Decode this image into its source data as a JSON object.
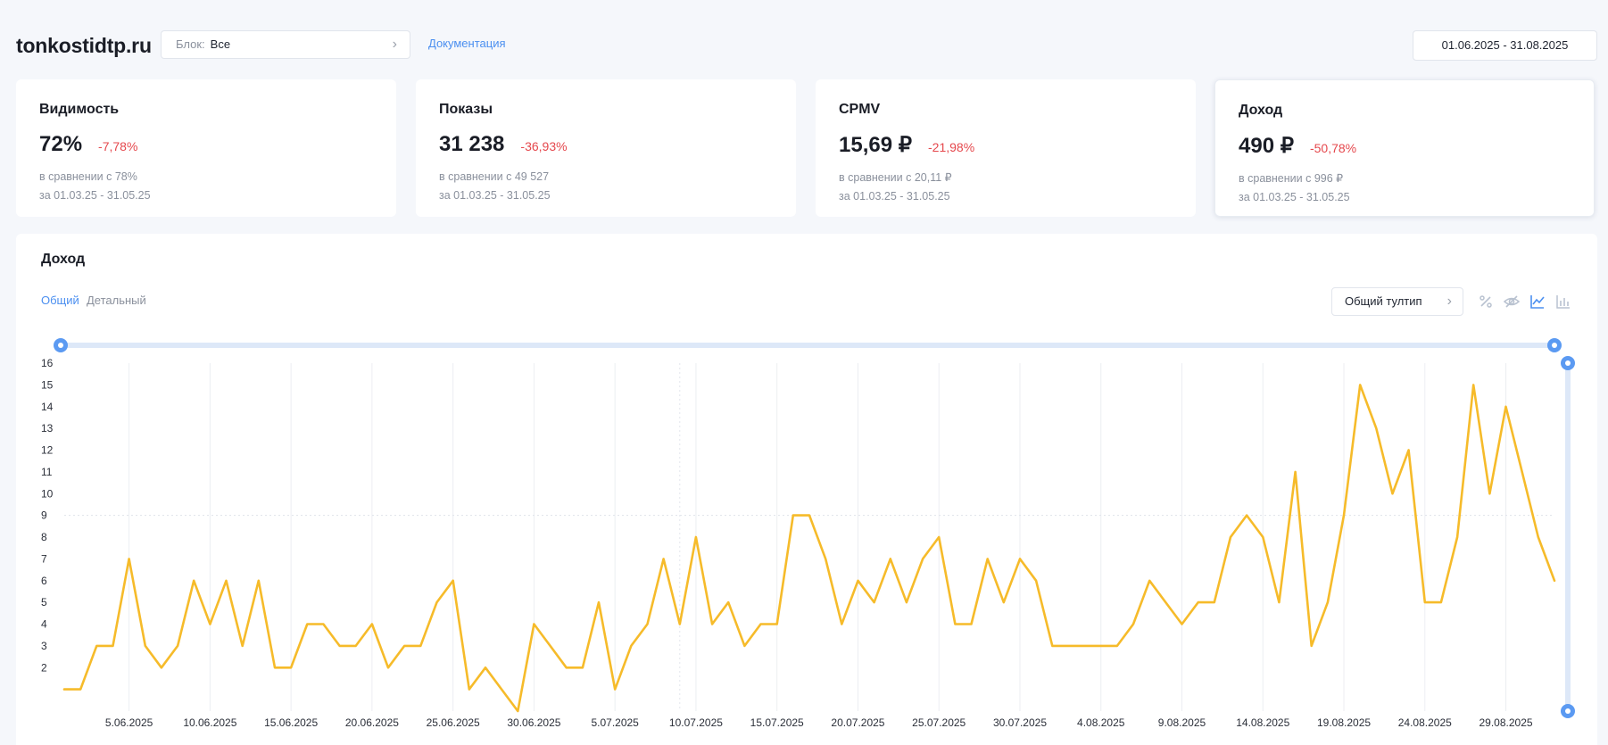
{
  "header": {
    "site_title": "tonkostidtp.ru",
    "block_label": "Блок:",
    "block_value": "Все",
    "docs_link": "Документация",
    "date_range": "01.06.2025 - 31.08.2025"
  },
  "cards": [
    {
      "title": "Видимость",
      "value": "72%",
      "delta": "-7,78%",
      "compare": "в сравнении с 78%",
      "period": "за 01.03.25 - 31.05.25"
    },
    {
      "title": "Показы",
      "value": "31 238",
      "delta": "-36,93%",
      "compare": "в сравнении с 49 527",
      "period": "за 01.03.25 - 31.05.25"
    },
    {
      "title": "CPMV",
      "value": "15,69 ₽",
      "delta": "-21,98%",
      "compare": "в сравнении с 20,11 ₽",
      "period": "за 01.03.25 - 31.05.25"
    },
    {
      "title": "Доход",
      "value": "490 ₽",
      "delta": "-50,78%",
      "compare": "в сравнении с 996 ₽",
      "period": "за 01.03.25 - 31.05.25"
    }
  ],
  "chart_panel": {
    "title": "Доход",
    "tabs": [
      "Общий",
      "Детальный"
    ],
    "tooltip_select": "Общий тултип",
    "icons": [
      "percent-icon",
      "eye-off-icon",
      "line-chart-icon",
      "bar-chart-icon"
    ]
  },
  "chart_data": {
    "type": "line",
    "title": "Доход",
    "color": "#f6bb2a",
    "ylim": [
      0,
      16
    ],
    "yticks": [
      2,
      3,
      4,
      5,
      6,
      7,
      8,
      9,
      10,
      11,
      12,
      13,
      14,
      15,
      16
    ],
    "xtick_labels": [
      "5.06.2025",
      "10.06.2025",
      "15.06.2025",
      "20.06.2025",
      "25.06.2025",
      "30.06.2025",
      "5.07.2025",
      "10.07.2025",
      "15.07.2025",
      "20.07.2025",
      "25.07.2025",
      "30.07.2025",
      "4.08.2025",
      "9.08.2025",
      "14.08.2025",
      "19.08.2025",
      "24.08.2025",
      "29.08.2025"
    ],
    "x_start": "01.06.2025",
    "x_end": "31.08.2025",
    "values": [
      1,
      1,
      3,
      3,
      7,
      3,
      2,
      3,
      6,
      4,
      6,
      3,
      6,
      2,
      2,
      4,
      4,
      3,
      3,
      4,
      2,
      3,
      3,
      5,
      6,
      1,
      2,
      1,
      0,
      4,
      3,
      2,
      2,
      5,
      1,
      3,
      4,
      7,
      4,
      8,
      4,
      5,
      3,
      4,
      4,
      9,
      9,
      7,
      4,
      6,
      5,
      7,
      5,
      7,
      8,
      4,
      4,
      7,
      5,
      7,
      6,
      3,
      3,
      3,
      3,
      3,
      4,
      6,
      5,
      4,
      5,
      5,
      8,
      9,
      8,
      5,
      11,
      3,
      5,
      9,
      15,
      13,
      10,
      12,
      5,
      5,
      8,
      15,
      10,
      14,
      11,
      8,
      6
    ],
    "grid": "vertical",
    "reference_line": 9
  }
}
